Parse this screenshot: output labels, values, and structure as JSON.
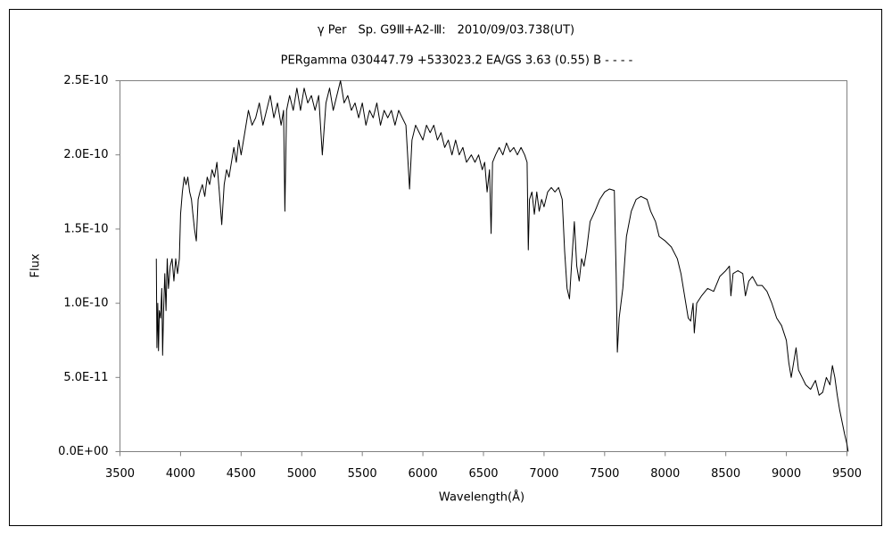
{
  "chart_data": {
    "type": "line",
    "title": "γ Per　Sp. G9Ⅲ+A2-Ⅲ:　2010/09/03.738(UT)",
    "subtitle": "PERgamma 030447.79 +533023.2 EA/GS 3.63 (0.55) B - - - -",
    "x_label": "Wavelength(Å)",
    "y_label": "Flux",
    "color": "#000000",
    "xlim": [
      3500,
      9500
    ],
    "xticks": [
      3500,
      4000,
      4500,
      5000,
      5500,
      6000,
      6500,
      7000,
      7500,
      8000,
      8500,
      9000,
      9500
    ],
    "ylim": [
      0,
      2.5e-10
    ],
    "yticks": [
      {
        "value": 0,
        "label": "0.0E+00"
      },
      {
        "value": 5e-11,
        "label": "5.0E-11"
      },
      {
        "value": 1e-10,
        "label": "1.0E-10"
      },
      {
        "value": 1.5e-10,
        "label": "1.5E-10"
      },
      {
        "value": 2e-10,
        "label": "2.0E-10"
      },
      {
        "value": 2.5e-10,
        "label": "2.5E-10"
      }
    ],
    "grid": false,
    "x": [
      3800,
      3805,
      3812,
      3818,
      3825,
      3835,
      3845,
      3852,
      3860,
      3870,
      3880,
      3890,
      3900,
      3915,
      3930,
      3945,
      3960,
      3975,
      3990,
      4000,
      4015,
      4030,
      4045,
      4060,
      4075,
      4090,
      4102,
      4115,
      4130,
      4145,
      4160,
      4180,
      4200,
      4220,
      4240,
      4260,
      4280,
      4300,
      4320,
      4340,
      4360,
      4380,
      4400,
      4420,
      4440,
      4460,
      4480,
      4500,
      4530,
      4560,
      4590,
      4620,
      4650,
      4680,
      4710,
      4740,
      4770,
      4800,
      4830,
      4850,
      4861,
      4875,
      4900,
      4930,
      4960,
      4990,
      5020,
      5050,
      5080,
      5110,
      5140,
      5170,
      5200,
      5230,
      5260,
      5290,
      5320,
      5350,
      5380,
      5410,
      5440,
      5470,
      5500,
      5530,
      5560,
      5590,
      5620,
      5650,
      5680,
      5710,
      5740,
      5770,
      5800,
      5830,
      5860,
      5890,
      5910,
      5940,
      5970,
      6000,
      6030,
      6060,
      6090,
      6120,
      6150,
      6180,
      6210,
      6240,
      6270,
      6300,
      6330,
      6360,
      6400,
      6430,
      6460,
      6490,
      6510,
      6530,
      6550,
      6563,
      6575,
      6600,
      6630,
      6660,
      6690,
      6720,
      6750,
      6780,
      6810,
      6840,
      6860,
      6870,
      6880,
      6900,
      6920,
      6940,
      6960,
      6980,
      7000,
      7030,
      7060,
      7090,
      7120,
      7150,
      7170,
      7190,
      7210,
      7230,
      7250,
      7270,
      7290,
      7310,
      7330,
      7350,
      7380,
      7420,
      7460,
      7500,
      7540,
      7580,
      7595,
      7605,
      7620,
      7650,
      7680,
      7720,
      7760,
      7800,
      7850,
      7880,
      7920,
      7950,
      8000,
      8050,
      8100,
      8130,
      8160,
      8190,
      8210,
      8230,
      8240,
      8260,
      8300,
      8350,
      8400,
      8450,
      8500,
      8530,
      8542,
      8560,
      8600,
      8640,
      8662,
      8690,
      8720,
      8760,
      8800,
      8840,
      8880,
      8920,
      8960,
      9000,
      9020,
      9040,
      9060,
      9080,
      9100,
      9130,
      9160,
      9200,
      9240,
      9270,
      9300,
      9330,
      9360,
      9380,
      9400,
      9420,
      9440,
      9460,
      9480,
      9500,
      9510
    ],
    "values": [
      1.3e-10,
      7e-11,
      1e-10,
      6.8e-11,
      9.5e-11,
      9e-11,
      1.1e-10,
      6.5e-11,
      9.5e-11,
      1.2e-10,
      9.5e-11,
      1.3e-10,
      1.1e-10,
      1.25e-10,
      1.3e-10,
      1.15e-10,
      1.3e-10,
      1.2e-10,
      1.3e-10,
      1.6e-10,
      1.75e-10,
      1.85e-10,
      1.8e-10,
      1.85e-10,
      1.75e-10,
      1.7e-10,
      1.6e-10,
      1.5e-10,
      1.42e-10,
      1.7e-10,
      1.75e-10,
      1.8e-10,
      1.72e-10,
      1.85e-10,
      1.8e-10,
      1.9e-10,
      1.85e-10,
      1.95e-10,
      1.75e-10,
      1.53e-10,
      1.8e-10,
      1.9e-10,
      1.85e-10,
      1.95e-10,
      2.05e-10,
      1.95e-10,
      2.1e-10,
      2e-10,
      2.15e-10,
      2.3e-10,
      2.2e-10,
      2.25e-10,
      2.35e-10,
      2.2e-10,
      2.3e-10,
      2.4e-10,
      2.25e-10,
      2.35e-10,
      2.2e-10,
      2.3e-10,
      1.62e-10,
      2.3e-10,
      2.4e-10,
      2.3e-10,
      2.45e-10,
      2.3e-10,
      2.45e-10,
      2.35e-10,
      2.4e-10,
      2.3e-10,
      2.4e-10,
      2e-10,
      2.35e-10,
      2.45e-10,
      2.3e-10,
      2.4e-10,
      2.5e-10,
      2.35e-10,
      2.4e-10,
      2.3e-10,
      2.35e-10,
      2.25e-10,
      2.35e-10,
      2.2e-10,
      2.3e-10,
      2.25e-10,
      2.35e-10,
      2.2e-10,
      2.3e-10,
      2.25e-10,
      2.3e-10,
      2.2e-10,
      2.3e-10,
      2.25e-10,
      2.2e-10,
      1.77e-10,
      2.1e-10,
      2.2e-10,
      2.15e-10,
      2.1e-10,
      2.2e-10,
      2.15e-10,
      2.2e-10,
      2.1e-10,
      2.15e-10,
      2.05e-10,
      2.1e-10,
      2e-10,
      2.1e-10,
      2e-10,
      2.05e-10,
      1.95e-10,
      2e-10,
      1.95e-10,
      2e-10,
      1.9e-10,
      1.95e-10,
      1.75e-10,
      1.9e-10,
      1.47e-10,
      1.95e-10,
      2e-10,
      2.05e-10,
      2e-10,
      2.08e-10,
      2.02e-10,
      2.05e-10,
      2e-10,
      2.05e-10,
      2e-10,
      1.95e-10,
      1.36e-10,
      1.7e-10,
      1.75e-10,
      1.6e-10,
      1.75e-10,
      1.62e-10,
      1.7e-10,
      1.65e-10,
      1.75e-10,
      1.78e-10,
      1.75e-10,
      1.78e-10,
      1.7e-10,
      1.35e-10,
      1.1e-10,
      1.03e-10,
      1.3e-10,
      1.55e-10,
      1.25e-10,
      1.15e-10,
      1.3e-10,
      1.25e-10,
      1.35e-10,
      1.55e-10,
      1.62e-10,
      1.7e-10,
      1.75e-10,
      1.77e-10,
      1.76e-10,
      1.2e-10,
      6.7e-11,
      9e-11,
      1.1e-10,
      1.45e-10,
      1.62e-10,
      1.7e-10,
      1.72e-10,
      1.7e-10,
      1.62e-10,
      1.55e-10,
      1.45e-10,
      1.42e-10,
      1.38e-10,
      1.3e-10,
      1.2e-10,
      1.05e-10,
      9e-11,
      8.8e-11,
      1e-10,
      8e-11,
      1e-10,
      1.05e-10,
      1.1e-10,
      1.08e-10,
      1.18e-10,
      1.22e-10,
      1.25e-10,
      1.05e-10,
      1.2e-10,
      1.22e-10,
      1.2e-10,
      1.05e-10,
      1.15e-10,
      1.18e-10,
      1.12e-10,
      1.12e-10,
      1.08e-10,
      1e-10,
      9e-11,
      8.5e-11,
      7.5e-11,
      6e-11,
      5e-11,
      6e-11,
      7e-11,
      5.5e-11,
      5e-11,
      4.5e-11,
      4.2e-11,
      4.8e-11,
      3.8e-11,
      4e-11,
      5e-11,
      4.5e-11,
      5.8e-11,
      5e-11,
      3.8e-11,
      2.8e-11,
      2e-11,
      1.2e-11,
      5e-12,
      0
    ]
  }
}
